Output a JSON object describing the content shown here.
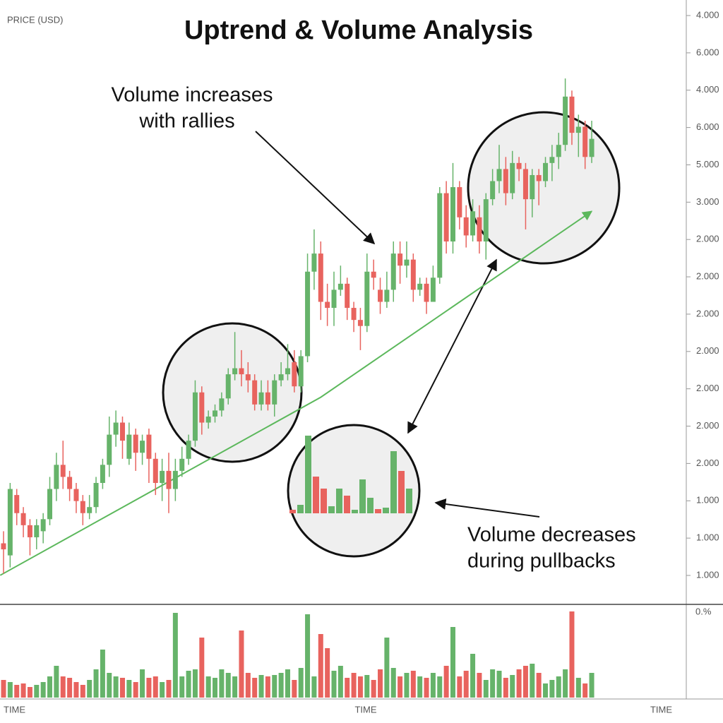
{
  "chart_data": {
    "type": "candlestick",
    "title": "Uptrend & Volume Analysis",
    "y_label": "PRICE (USD)",
    "price_axis_labels": [
      "4.000",
      "6.000",
      "4.000",
      "6.000",
      "5.000",
      "3.000",
      "2.000",
      "2.000",
      "2.000",
      "2.000",
      "2.000",
      "2.000",
      "2.000",
      "1.000",
      "1.000",
      "1.000"
    ],
    "volume_axis_label": "0.%",
    "x_labels": [
      "TIME",
      "TIME",
      "TIME"
    ],
    "annotations": [
      {
        "lines": [
          "Volume increases",
          "with rallies"
        ]
      },
      {
        "lines": [
          "Volume decreases",
          "during pullbacks"
        ]
      }
    ],
    "ylim": [
      0,
      100
    ],
    "vlim": [
      0,
      130
    ],
    "up_color": "#66b36a",
    "down_color": "#e8635e",
    "open": [
      10,
      8,
      18,
      15,
      13,
      11,
      12,
      14,
      19,
      23,
      21,
      19,
      17,
      15,
      16,
      20,
      23,
      28,
      30,
      24,
      28,
      25,
      28,
      24,
      20,
      22,
      19,
      22,
      24,
      27,
      35,
      30,
      31,
      32,
      34,
      38,
      39,
      38,
      37,
      33,
      35,
      33,
      37,
      38,
      40,
      36,
      41,
      55,
      58,
      50,
      49,
      52,
      53,
      49,
      47,
      46,
      55,
      52,
      50,
      52,
      58,
      56,
      57,
      52,
      53,
      50,
      54,
      68,
      60,
      69,
      64,
      61,
      64,
      60,
      67,
      70,
      72,
      68,
      73,
      72,
      67,
      71,
      70,
      73,
      74,
      76,
      84,
      78,
      79,
      74
    ],
    "high": [
      12,
      20,
      19,
      16,
      14,
      14,
      15,
      21,
      25,
      27,
      22,
      20,
      18,
      18,
      21,
      24,
      31,
      32,
      31,
      30,
      29,
      28,
      29,
      25,
      24,
      25,
      24,
      26,
      28,
      37,
      36,
      32,
      33,
      35,
      39,
      45,
      42,
      40,
      38,
      37,
      37,
      38,
      40,
      43,
      42,
      42,
      58,
      62,
      60,
      53,
      55,
      56,
      54,
      50,
      49,
      58,
      57,
      54,
      55,
      60,
      60,
      60,
      58,
      54,
      54,
      56,
      69,
      70,
      73,
      70,
      66,
      67,
      66,
      68,
      72,
      76,
      74,
      75,
      74,
      73,
      72,
      72,
      74,
      76,
      78,
      87,
      85,
      81,
      80,
      80
    ],
    "low": [
      5,
      6,
      13,
      11,
      8,
      9,
      10,
      13,
      17,
      19,
      17,
      15,
      13,
      14,
      15,
      19,
      21,
      26,
      24,
      23,
      22,
      23,
      20,
      18,
      17,
      15,
      17,
      21,
      23,
      26,
      28,
      29,
      30,
      31,
      33,
      37,
      36,
      35,
      32,
      32,
      32,
      31,
      36,
      37,
      35,
      35,
      40,
      52,
      47,
      46,
      46,
      51,
      47,
      45,
      42,
      45,
      52,
      48,
      49,
      50,
      53,
      54,
      50,
      51,
      48,
      50,
      53,
      58,
      58,
      62,
      59,
      60,
      58,
      57,
      66,
      68,
      66,
      67,
      70,
      62,
      64,
      66,
      69,
      70,
      72,
      75,
      76,
      74,
      72,
      73
    ],
    "close": [
      9,
      19,
      15,
      13,
      11,
      13,
      14,
      19,
      23,
      21,
      19,
      17,
      15,
      16,
      20,
      23,
      28,
      30,
      27,
      28,
      25,
      27,
      24,
      20,
      22,
      19,
      22,
      24,
      27,
      35,
      30,
      31,
      32,
      34,
      38,
      39,
      38,
      37,
      33,
      35,
      33,
      37,
      38,
      39,
      36,
      41,
      55,
      58,
      50,
      49,
      52,
      53,
      49,
      47,
      46,
      55,
      54,
      50,
      52,
      58,
      56,
      57,
      52,
      53,
      50,
      54,
      68,
      60,
      69,
      64,
      61,
      65,
      60,
      67,
      70,
      72,
      68,
      73,
      72,
      67,
      71,
      70,
      73,
      74,
      76,
      84,
      78,
      79,
      74,
      77
    ],
    "volume": [
      25,
      22,
      18,
      20,
      15,
      18,
      22,
      30,
      45,
      30,
      28,
      22,
      18,
      25,
      40,
      68,
      35,
      30,
      28,
      25,
      22,
      40,
      28,
      30,
      22,
      25,
      120,
      30,
      38,
      40,
      85,
      30,
      28,
      40,
      35,
      30,
      95,
      35,
      28,
      32,
      30,
      32,
      35,
      40,
      25,
      42,
      118,
      30,
      90,
      70,
      38,
      45,
      28,
      35,
      30,
      32,
      25,
      40,
      85,
      42,
      30,
      35,
      38,
      30,
      28,
      35,
      30,
      45,
      100,
      30,
      38,
      62,
      35,
      25,
      40,
      38,
      28,
      32,
      40,
      45,
      48,
      35,
      20,
      25,
      30,
      40,
      122,
      28,
      20,
      35
    ],
    "trendline": {
      "x": [
        -0.5,
        48,
        89
      ],
      "values": [
        4.7,
        34.2,
        65
      ],
      "color": "#5cb85c"
    },
    "inset_volume": {
      "values": [
        5,
        12,
        110,
        52,
        35,
        10,
        35,
        25,
        5,
        48,
        22,
        6,
        8,
        88,
        60,
        35
      ],
      "colors": [
        "#e8635e",
        "#66b36a",
        "#66b36a",
        "#e8635e",
        "#e8635e",
        "#66b36a",
        "#66b36a",
        "#e8635e",
        "#66b36a",
        "#66b36a",
        "#66b36a",
        "#e8635e",
        "#66b36a",
        "#66b36a",
        "#e8635e",
        "#66b36a"
      ]
    }
  }
}
